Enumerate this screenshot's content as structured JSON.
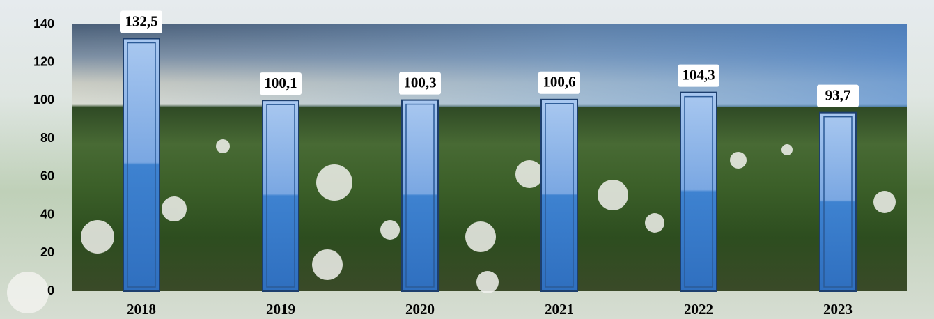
{
  "chart_data": {
    "type": "bar",
    "categories": [
      "2018",
      "2019",
      "2020",
      "2021",
      "2022",
      "2023"
    ],
    "values": [
      132.5,
      100.1,
      100.3,
      100.6,
      104.3,
      93.7
    ],
    "value_labels": [
      "132,5",
      "100,1",
      "100,3",
      "100,6",
      "104,3",
      "93,7"
    ],
    "color": "#5b8fd6",
    "ylim": [
      0,
      140
    ],
    "yticks": [
      0,
      20,
      40,
      60,
      80,
      100,
      120,
      140
    ],
    "grid": false
  }
}
